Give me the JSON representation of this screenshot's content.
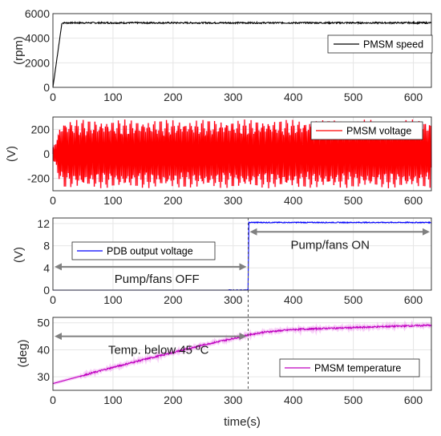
{
  "chart_data": [
    {
      "type": "line",
      "ylabel": "(rpm)",
      "xlim": [
        0,
        630
      ],
      "ylim": [
        0,
        6000
      ],
      "yticks": [
        0,
        2000,
        4000,
        6000
      ],
      "xticks": [
        0,
        100,
        200,
        300,
        400,
        500,
        600
      ],
      "grid": true,
      "legend_position": "right",
      "series": [
        {
          "name": "PMSM speed",
          "color": "#000000",
          "x": [
            0,
            15,
            630
          ],
          "y": [
            0,
            5250,
            5250
          ],
          "noise": 60
        }
      ],
      "annotations": []
    },
    {
      "type": "line",
      "ylabel": "(V)",
      "xlim": [
        0,
        630
      ],
      "ylim": [
        -300,
        300
      ],
      "yticks": [
        -200,
        0,
        200
      ],
      "xticks": [
        0,
        100,
        200,
        300,
        400,
        500,
        600
      ],
      "grid": true,
      "legend_position": "top-right",
      "series": [
        {
          "name": "PMSM voltage",
          "color": "#ff0000",
          "envelope_x": [
            0,
            15,
            630
          ],
          "envelope_amplitude": [
            50,
            280,
            280
          ]
        }
      ],
      "annotations": []
    },
    {
      "type": "line",
      "ylabel": "(V)",
      "xlim": [
        0,
        630
      ],
      "ylim": [
        0,
        13
      ],
      "yticks": [
        0,
        4,
        8,
        12
      ],
      "xticks": [
        0,
        100,
        200,
        300,
        400,
        500,
        600
      ],
      "grid": true,
      "legend_position": "left",
      "series": [
        {
          "name": "PDB output voltage",
          "color": "#0000ff",
          "x": [
            0,
            325,
            326,
            630
          ],
          "y": [
            0,
            0,
            12.2,
            12.2
          ],
          "noise": 0.08
        }
      ],
      "annotations": [
        {
          "text": "Pump/fans OFF",
          "arrow_x": [
            0,
            325
          ],
          "arrow_y": 4.2
        },
        {
          "text": "Pump/fans ON",
          "arrow_x": [
            325,
            630
          ],
          "arrow_y": 10.5
        }
      ]
    },
    {
      "type": "line",
      "ylabel": "(deg)",
      "xlabel": "time(s)",
      "xlim": [
        0,
        630
      ],
      "ylim": [
        25,
        52
      ],
      "yticks": [
        30,
        40,
        50
      ],
      "xticks": [
        0,
        100,
        200,
        300,
        400,
        500,
        600
      ],
      "grid": true,
      "legend_position": "right",
      "series": [
        {
          "name": "PMSM temperature",
          "color": "#bf00bf",
          "x": [
            0,
            50,
            100,
            150,
            200,
            250,
            300,
            325,
            350,
            400,
            450,
            500,
            550,
            600,
            630
          ],
          "y": [
            27.5,
            30.5,
            33.5,
            36.3,
            39,
            41.8,
            44.2,
            45.5,
            46.5,
            47.5,
            47.9,
            48.2,
            48.6,
            48.9,
            49.1
          ],
          "noise": 0.3
        }
      ],
      "annotations": [
        {
          "text": "Temp. below 45 ºC",
          "arrow_x": [
            0,
            325
          ],
          "arrow_y": 45
        }
      ]
    }
  ],
  "divider_x": 325
}
